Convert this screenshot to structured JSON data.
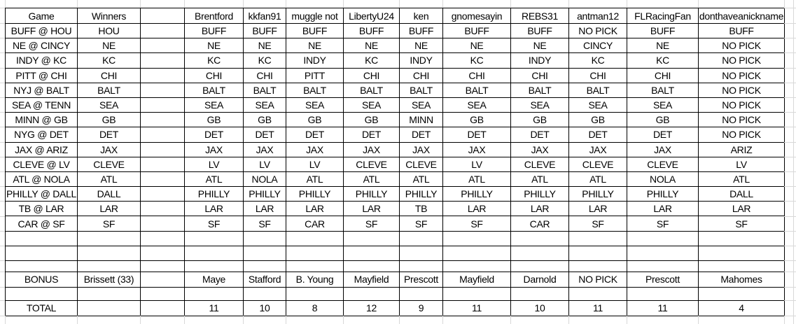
{
  "sheet": {
    "header": {
      "game_label": "Game",
      "winners_label": "Winners",
      "players": [
        "Brentford",
        "kkfan91",
        "muggle not",
        "LibertyU24",
        "ken",
        "gnomesayin",
        "REBS31",
        "antman12",
        "FLRacingFan",
        "donthaveanickname"
      ]
    },
    "games": [
      {
        "matchup": "BUFF @ HOU",
        "winner": "HOU",
        "picks": [
          "BUFF",
          "BUFF",
          "BUFF",
          "BUFF",
          "BUFF",
          "BUFF",
          "BUFF",
          "NO PICK",
          "BUFF",
          "BUFF"
        ],
        "correct": [
          false,
          false,
          false,
          false,
          false,
          false,
          false,
          false,
          false,
          false
        ]
      },
      {
        "matchup": "NE @ CINCY",
        "winner": "NE",
        "picks": [
          "NE",
          "NE",
          "NE",
          "NE",
          "NE",
          "NE",
          "NE",
          "CINCY",
          "NE",
          "NO PICK"
        ],
        "correct": [
          true,
          true,
          true,
          true,
          true,
          true,
          true,
          false,
          true,
          false
        ]
      },
      {
        "matchup": "INDY @ KC",
        "winner": "KC",
        "picks": [
          "KC",
          "KC",
          "INDY",
          "KC",
          "INDY",
          "KC",
          "INDY",
          "KC",
          "KC",
          "NO PICK"
        ],
        "correct": [
          true,
          true,
          false,
          true,
          false,
          true,
          false,
          true,
          true,
          false
        ]
      },
      {
        "matchup": "PITT @ CHI",
        "winner": "CHI",
        "picks": [
          "CHI",
          "CHI",
          "PITT",
          "CHI",
          "CHI",
          "CHI",
          "CHI",
          "CHI",
          "CHI",
          "NO PICK"
        ],
        "correct": [
          true,
          true,
          false,
          true,
          true,
          true,
          true,
          true,
          true,
          false
        ]
      },
      {
        "matchup": "NYJ @ BALT",
        "winner": "BALT",
        "picks": [
          "BALT",
          "BALT",
          "BALT",
          "BALT",
          "BALT",
          "BALT",
          "BALT",
          "BALT",
          "BALT",
          "NO PICK"
        ],
        "correct": [
          true,
          true,
          true,
          true,
          true,
          true,
          true,
          true,
          true,
          false
        ]
      },
      {
        "matchup": "SEA @ TENN",
        "winner": "SEA",
        "picks": [
          "SEA",
          "SEA",
          "SEA",
          "SEA",
          "SEA",
          "SEA",
          "SEA",
          "SEA",
          "SEA",
          "NO PICK"
        ],
        "correct": [
          true,
          true,
          true,
          true,
          true,
          true,
          true,
          true,
          true,
          false
        ]
      },
      {
        "matchup": "MINN @ GB",
        "winner": "GB",
        "picks": [
          "GB",
          "GB",
          "GB",
          "GB",
          "MINN",
          "GB",
          "GB",
          "GB",
          "GB",
          "NO PICK"
        ],
        "correct": [
          true,
          true,
          true,
          true,
          false,
          true,
          true,
          true,
          true,
          false
        ]
      },
      {
        "matchup": "NYG @ DET",
        "winner": "DET",
        "picks": [
          "DET",
          "DET",
          "DET",
          "DET",
          "DET",
          "DET",
          "DET",
          "DET",
          "DET",
          "NO PICK"
        ],
        "correct": [
          true,
          true,
          true,
          true,
          true,
          true,
          true,
          true,
          true,
          false
        ]
      },
      {
        "matchup": "JAX @ ARIZ",
        "winner": "JAX",
        "picks": [
          "JAX",
          "JAX",
          "JAX",
          "JAX",
          "JAX",
          "JAX",
          "JAX",
          "JAX",
          "JAX",
          "ARIZ"
        ],
        "correct": [
          true,
          true,
          true,
          true,
          true,
          true,
          true,
          true,
          true,
          false
        ]
      },
      {
        "matchup": "CLEVE @ LV",
        "winner": "CLEVE",
        "picks": [
          "LV",
          "LV",
          "LV",
          "CLEVE",
          "CLEVE",
          "LV",
          "CLEVE",
          "CLEVE",
          "CLEVE",
          "LV"
        ],
        "correct": [
          false,
          false,
          false,
          true,
          true,
          false,
          true,
          true,
          true,
          false
        ]
      },
      {
        "matchup": "ATL @ NOLA",
        "winner": "ATL",
        "picks": [
          "ATL",
          "NOLA",
          "ATL",
          "ATL",
          "ATL",
          "ATL",
          "ATL",
          "ATL",
          "NOLA",
          "ATL"
        ],
        "correct": [
          true,
          false,
          true,
          true,
          true,
          true,
          true,
          true,
          false,
          true
        ]
      },
      {
        "matchup": "PHILLY @ DALL",
        "winner": "DALL",
        "picks": [
          "PHILLY",
          "PHILLY",
          "PHILLY",
          "PHILLY",
          "PHILLY",
          "PHILLY",
          "PHILLY",
          "PHILLY",
          "PHILLY",
          "DALL"
        ],
        "correct": [
          false,
          false,
          false,
          false,
          false,
          false,
          false,
          false,
          false,
          true
        ]
      },
      {
        "matchup": "TB @ LAR",
        "winner": "LAR",
        "picks": [
          "LAR",
          "LAR",
          "LAR",
          "LAR",
          "TB",
          "LAR",
          "LAR",
          "LAR",
          "LAR",
          "LAR"
        ],
        "correct": [
          true,
          true,
          true,
          true,
          false,
          true,
          true,
          true,
          true,
          true
        ]
      },
      {
        "matchup": "CAR @ SF",
        "winner": "SF",
        "picks": [
          "SF",
          "SF",
          "CAR",
          "SF",
          "SF",
          "SF",
          "CAR",
          "SF",
          "SF",
          "SF"
        ],
        "correct": [
          true,
          true,
          false,
          true,
          true,
          true,
          false,
          true,
          true,
          true
        ]
      }
    ],
    "empty_rows_after_games": 3,
    "bonus_row": {
      "label": "BONUS",
      "winner": "Brissett (33)",
      "picks": [
        "Maye",
        "Stafford",
        "B. Young",
        "Mayfield",
        "Prescott",
        "Mayfield",
        "Darnold",
        "NO PICK",
        "Prescott",
        "Mahomes"
      ],
      "correct": [
        false,
        false,
        false,
        false,
        false,
        false,
        false,
        false,
        false,
        false
      ]
    },
    "empty_rows_before_total": 1,
    "total_row": {
      "label": "TOTAL",
      "values": [
        "11",
        "10",
        "8",
        "12",
        "9",
        "11",
        "10",
        "11",
        "11",
        "4"
      ]
    },
    "colors": {
      "correct_pick": "#92D050",
      "wrong_pick": "#FF0000",
      "border": "#000000",
      "gridline": "#D8D8D8"
    }
  }
}
